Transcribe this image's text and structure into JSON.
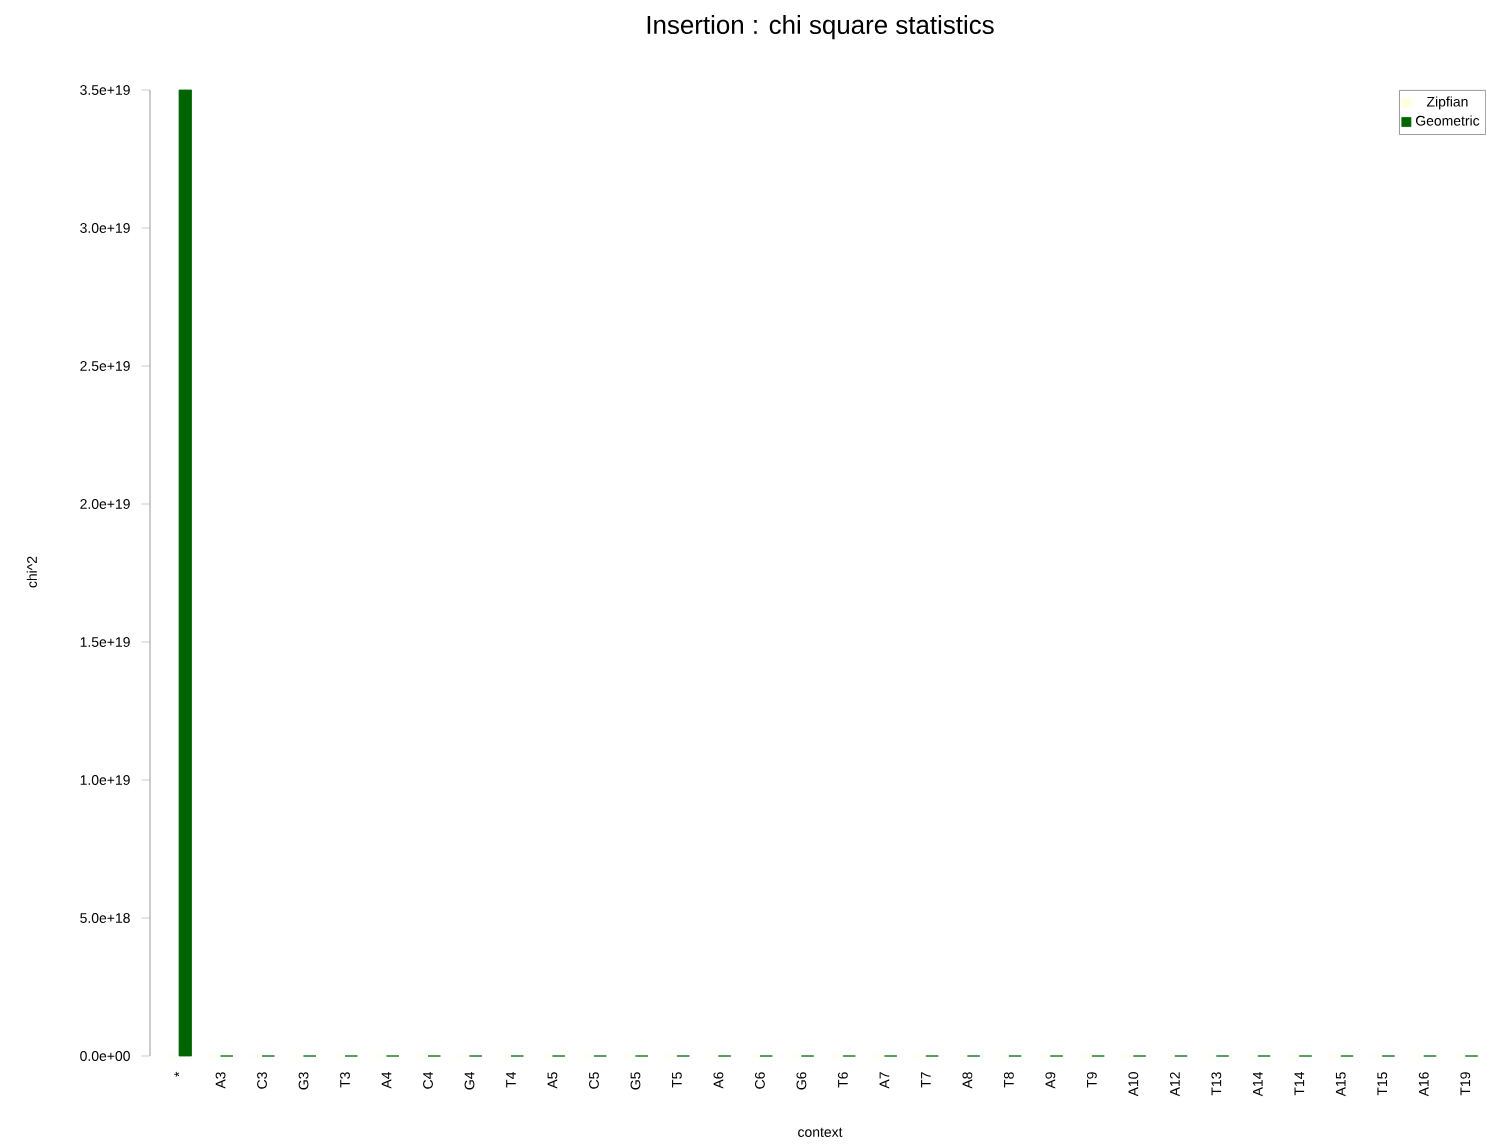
{
  "chart_data": {
    "type": "bar",
    "title": "Insertion : chi square statistics",
    "xlabel": "context",
    "ylabel": "chi^2",
    "categories": [
      "*",
      "A3",
      "C3",
      "G3",
      "T3",
      "A4",
      "C4",
      "G4",
      "T4",
      "A5",
      "C5",
      "G5",
      "T5",
      "A6",
      "C6",
      "G6",
      "T6",
      "A7",
      "T7",
      "A8",
      "T8",
      "A9",
      "T9",
      "A10",
      "A12",
      "T13",
      "A14",
      "T14",
      "A15",
      "T15",
      "A16",
      "T19"
    ],
    "series": [
      {
        "name": "Zipfian",
        "color": "#ffffe0",
        "values": [
          0,
          0,
          0,
          0,
          0,
          0,
          0,
          0,
          0,
          0,
          0,
          0,
          0,
          0,
          0,
          0,
          0,
          0,
          0,
          0,
          0,
          0,
          0,
          0,
          0,
          0,
          0,
          0,
          0,
          0,
          0,
          0
        ]
      },
      {
        "name": "Geometric",
        "color": "#006400",
        "values": [
          3.5e+19,
          0,
          0,
          0,
          0,
          0,
          0,
          0,
          0,
          0,
          0,
          0,
          0,
          0,
          0,
          0,
          0,
          0,
          0,
          0,
          0,
          0,
          0,
          0,
          0,
          0,
          0,
          0,
          0,
          0,
          0,
          0
        ]
      }
    ],
    "ylim": [
      0,
      3.5e+19
    ],
    "yticks": [
      {
        "value": 0,
        "label": "0.0e+00"
      },
      {
        "value": 5e+18,
        "label": "5.0e+18"
      },
      {
        "value": 1e+19,
        "label": "1.0e+19"
      },
      {
        "value": 1.5e+19,
        "label": "1.5e+19"
      },
      {
        "value": 2e+19,
        "label": "2.0e+19"
      },
      {
        "value": 2.5e+19,
        "label": "2.5e+19"
      },
      {
        "value": 3e+19,
        "label": "3.0e+19"
      },
      {
        "value": 3.5e+19,
        "label": "3.5e+19"
      }
    ],
    "legend": "top right"
  }
}
